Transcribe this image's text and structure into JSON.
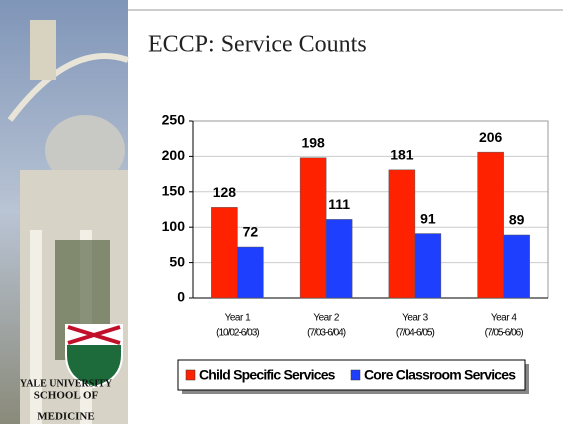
{
  "sidebar": {
    "logo_lines": [
      "YALE UNIVERSITY",
      "SCHOOL OF",
      "MEDICINE"
    ]
  },
  "chart_data": {
    "type": "bar",
    "title": "ECCP: Service Counts",
    "categories": [
      "Year 1",
      "Year 2",
      "Year 3",
      "Year 4"
    ],
    "category_periods": [
      "(10/02-6/03)",
      "(7/03-6/04)",
      "(7/04-6/05)",
      "(7/05-6/06)"
    ],
    "series": [
      {
        "name": "Child Specific Services",
        "color": "#ff2200",
        "values": [
          128,
          198,
          181,
          206
        ]
      },
      {
        "name": "Core Classroom Services",
        "color": "#1f3fff",
        "values": [
          72,
          111,
          91,
          89
        ]
      }
    ],
    "ylim": [
      0,
      250
    ],
    "yticks": [
      0,
      50,
      100,
      150,
      200,
      250
    ],
    "grid": true,
    "legend": "bottom"
  }
}
